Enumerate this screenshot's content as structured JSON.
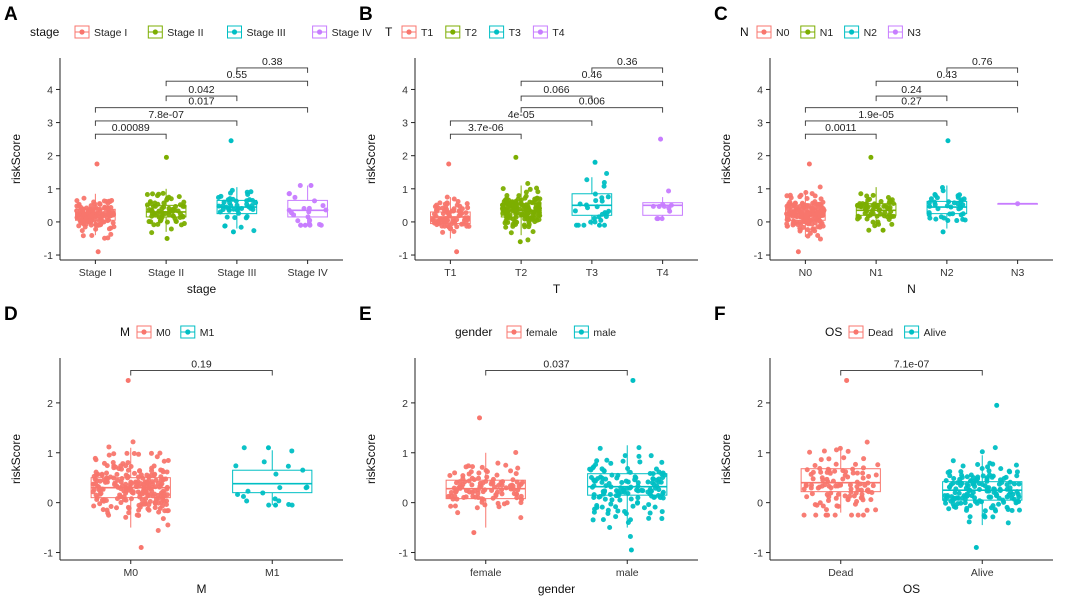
{
  "figure": {
    "ylabel": "riskScore",
    "ylim": [
      -1.15,
      2.9
    ],
    "yticks": [
      -1,
      0,
      1,
      2,
      3,
      4
    ]
  },
  "chart_data": [
    {
      "panel": "A",
      "type": "box",
      "xlabel": "stage",
      "legend_title": "stage",
      "ylim": [
        -1.15,
        4.95
      ],
      "yticks": [
        -1,
        0,
        1,
        2,
        3,
        4
      ],
      "categories": [
        "Stage I",
        "Stage II",
        "Stage III",
        "Stage IV"
      ],
      "colors": [
        "#F8766D",
        "#7CAE00",
        "#00BFC4",
        "#C77CFF"
      ],
      "boxes": [
        {
          "q1": 0.05,
          "median": 0.2,
          "q3": 0.38,
          "lo": -0.4,
          "hi": 0.85,
          "n": 150,
          "min": -0.9,
          "max": 1.75
        },
        {
          "q1": 0.15,
          "median": 0.3,
          "q3": 0.5,
          "lo": -0.3,
          "hi": 1.0,
          "n": 70,
          "min": -0.5,
          "max": 1.95
        },
        {
          "q1": 0.25,
          "median": 0.45,
          "q3": 0.65,
          "lo": -0.2,
          "hi": 1.05,
          "n": 45,
          "min": -0.3,
          "max": 2.45
        },
        {
          "q1": 0.15,
          "median": 0.35,
          "q3": 0.65,
          "lo": -0.1,
          "hi": 1.1,
          "n": 22,
          "min": -0.1,
          "max": 1.1
        }
      ],
      "comparisons": [
        {
          "from": 0,
          "to": 1,
          "p": "0.00089",
          "y": 2.65
        },
        {
          "from": 0,
          "to": 2,
          "p": "7.8e-07",
          "y": 3.05
        },
        {
          "from": 0,
          "to": 3,
          "p": "0.017",
          "y": 3.45
        },
        {
          "from": 1,
          "to": 2,
          "p": "0.042",
          "y": 3.8
        },
        {
          "from": 1,
          "to": 3,
          "p": "0.55",
          "y": 4.25
        },
        {
          "from": 2,
          "to": 3,
          "p": "0.38",
          "y": 4.65
        }
      ]
    },
    {
      "panel": "B",
      "type": "box",
      "xlabel": "T",
      "legend_title": "T",
      "ylim": [
        -1.15,
        4.95
      ],
      "yticks": [
        -1,
        0,
        1,
        2,
        3,
        4
      ],
      "categories": [
        "T1",
        "T2",
        "T3",
        "T4"
      ],
      "colors": [
        "#F8766D",
        "#7CAE00",
        "#00BFC4",
        "#C77CFF"
      ],
      "boxes": [
        {
          "q1": -0.05,
          "median": 0.15,
          "q3": 0.3,
          "lo": -0.5,
          "hi": 0.75,
          "n": 90,
          "min": -0.9,
          "max": 1.75
        },
        {
          "q1": 0.15,
          "median": 0.35,
          "q3": 0.55,
          "lo": -0.4,
          "hi": 1.1,
          "n": 150,
          "min": -0.6,
          "max": 1.95
        },
        {
          "q1": 0.2,
          "median": 0.5,
          "q3": 0.85,
          "lo": -0.1,
          "hi": 1.35,
          "n": 28,
          "min": -0.1,
          "max": 1.8
        },
        {
          "q1": 0.2,
          "median": 0.5,
          "q3": 0.58,
          "lo": 0.1,
          "hi": 0.75,
          "n": 10,
          "min": 0.1,
          "max": 2.5
        }
      ],
      "comparisons": [
        {
          "from": 0,
          "to": 1,
          "p": "3.7e-06",
          "y": 2.65
        },
        {
          "from": 0,
          "to": 2,
          "p": "4e-05",
          "y": 3.05
        },
        {
          "from": 1,
          "to": 3,
          "p": "0.006",
          "y": 3.45
        },
        {
          "from": 1,
          "to": 2,
          "p": "0.066",
          "y": 3.8
        },
        {
          "from": 1,
          "to": 3,
          "p": "0.46",
          "y": 4.25
        },
        {
          "from": 2,
          "to": 3,
          "p": "0.36",
          "y": 4.65
        }
      ]
    },
    {
      "panel": "C",
      "type": "box",
      "xlabel": "N",
      "legend_title": "N",
      "ylim": [
        -1.15,
        4.95
      ],
      "yticks": [
        -1,
        0,
        1,
        2,
        3,
        4
      ],
      "categories": [
        "N0",
        "N1",
        "N2",
        "N3"
      ],
      "colors": [
        "#F8766D",
        "#7CAE00",
        "#00BFC4",
        "#C77CFF"
      ],
      "boxes": [
        {
          "q1": 0.05,
          "median": 0.25,
          "q3": 0.42,
          "lo": -0.45,
          "hi": 0.95,
          "n": 170,
          "min": -0.9,
          "max": 1.75
        },
        {
          "q1": 0.2,
          "median": 0.35,
          "q3": 0.55,
          "lo": -0.15,
          "hi": 1.05,
          "n": 65,
          "min": -0.25,
          "max": 1.95
        },
        {
          "q1": 0.25,
          "median": 0.45,
          "q3": 0.62,
          "lo": -0.2,
          "hi": 1.1,
          "n": 40,
          "min": -0.3,
          "max": 2.45
        },
        {
          "q1": 0.55,
          "median": 0.55,
          "q3": 0.55,
          "lo": 0.55,
          "hi": 0.55,
          "n": 1,
          "min": 0.55,
          "max": 0.55
        }
      ],
      "comparisons": [
        {
          "from": 0,
          "to": 1,
          "p": "0.0011",
          "y": 2.65
        },
        {
          "from": 0,
          "to": 2,
          "p": "1.9e-05",
          "y": 3.05
        },
        {
          "from": 0,
          "to": 3,
          "p": "0.27",
          "y": 3.45
        },
        {
          "from": 1,
          "to": 2,
          "p": "0.24",
          "y": 3.8
        },
        {
          "from": 1,
          "to": 3,
          "p": "0.43",
          "y": 4.25
        },
        {
          "from": 2,
          "to": 3,
          "p": "0.76",
          "y": 4.65
        }
      ]
    },
    {
      "panel": "D",
      "type": "box",
      "xlabel": "M",
      "legend_title": "M",
      "ylim": [
        -1.15,
        2.9
      ],
      "yticks": [
        -1,
        0,
        1,
        2
      ],
      "categories": [
        "M0",
        "M1"
      ],
      "colors": [
        "#F8766D",
        "#00BFC4"
      ],
      "boxes": [
        {
          "q1": 0.1,
          "median": 0.3,
          "q3": 0.5,
          "lo": -0.5,
          "hi": 1.1,
          "n": 230,
          "min": -0.9,
          "max": 2.45
        },
        {
          "q1": 0.2,
          "median": 0.38,
          "q3": 0.65,
          "lo": -0.05,
          "hi": 1.05,
          "n": 20,
          "min": -0.05,
          "max": 1.1
        }
      ],
      "comparisons": [
        {
          "from": 0,
          "to": 1,
          "p": "0.19",
          "y": 2.65
        }
      ]
    },
    {
      "panel": "E",
      "type": "box",
      "xlabel": "gender",
      "legend_title": "gender",
      "ylim": [
        -1.15,
        2.9
      ],
      "yticks": [
        -1,
        0,
        1,
        2
      ],
      "categories": [
        "female",
        "male"
      ],
      "colors": [
        "#F8766D",
        "#00BFC4"
      ],
      "boxes": [
        {
          "q1": 0.08,
          "median": 0.28,
          "q3": 0.45,
          "lo": -0.5,
          "hi": 1.0,
          "n": 110,
          "min": -0.6,
          "max": 1.7
        },
        {
          "q1": 0.15,
          "median": 0.32,
          "q3": 0.58,
          "lo": -0.5,
          "hi": 1.15,
          "n": 140,
          "min": -0.95,
          "max": 2.45
        }
      ],
      "comparisons": [
        {
          "from": 0,
          "to": 1,
          "p": "0.037",
          "y": 2.65
        }
      ]
    },
    {
      "panel": "F",
      "type": "box",
      "xlabel": "OS",
      "legend_title": "OS",
      "ylim": [
        -1.15,
        2.9
      ],
      "yticks": [
        -1,
        0,
        1,
        2
      ],
      "categories": [
        "Dead",
        "Alive"
      ],
      "colors": [
        "#F8766D",
        "#00BFC4"
      ],
      "boxes": [
        {
          "q1": 0.22,
          "median": 0.4,
          "q3": 0.68,
          "lo": -0.2,
          "hi": 1.1,
          "n": 110,
          "min": -0.25,
          "max": 2.45
        },
        {
          "q1": 0.05,
          "median": 0.25,
          "q3": 0.42,
          "lo": -0.45,
          "hi": 0.95,
          "n": 160,
          "min": -0.9,
          "max": 1.95
        }
      ],
      "comparisons": [
        {
          "from": 0,
          "to": 1,
          "p": "7.1e-07",
          "y": 2.65
        }
      ]
    }
  ]
}
